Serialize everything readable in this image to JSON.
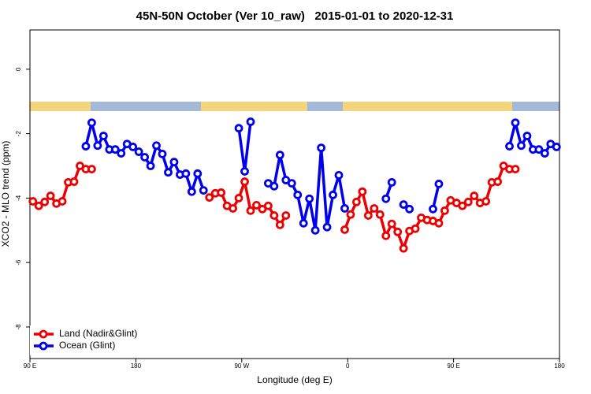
{
  "chart_data": {
    "type": "line",
    "title": "45N-50N October (Ver 10_raw)   2015-01-01 to 2020-12-31",
    "xlabel": "Longitude (deg E)",
    "ylabel": "XCO2 - MLO trend (ppm)",
    "xlim": [
      90,
      540
    ],
    "ylim": [
      -8.98,
      1.22
    ],
    "xticks": [
      {
        "value": 90,
        "label": "90 E"
      },
      180,
      {
        "value": 270,
        "label": "90 W"
      },
      {
        "value": 360,
        "label": "0"
      },
      {
        "value": 450,
        "label": "90 E"
      },
      {
        "value": 540,
        "label": "180"
      }
    ],
    "yticks": [
      -8,
      -6,
      -4,
      -2,
      0
    ],
    "legend": "bottomleft",
    "series": [
      {
        "name": "Land (Nadir&Glint)",
        "color": "#ee0000",
        "x": [
          92.5,
          97.5,
          102.5,
          107.5,
          112.5,
          117.5,
          122.5,
          127.5,
          132.5,
          137.5,
          142.5,
          null,
          242.5,
          247.5,
          252.5,
          257.5,
          262.5,
          267.5,
          272.5,
          277.5,
          282.5,
          287.5,
          292.5,
          297.5,
          302.5,
          307.5,
          null,
          357.5,
          362.5,
          367.5,
          372.5,
          377.5,
          382.5,
          387.5,
          392.5,
          397.5,
          402.5,
          407.5,
          412.5,
          417.5,
          422.5,
          427.5,
          432.5,
          437.5,
          442.5,
          447.5,
          452.5,
          457.5,
          462.5,
          467.5,
          472.5,
          477.5,
          482.5,
          487.5,
          492.5,
          497.5,
          502.5
        ],
        "values": [
          -4.1,
          -4.24,
          -4.12,
          -3.93,
          -4.17,
          -4.1,
          -3.51,
          -3.49,
          -3.0,
          -3.1,
          -3.1,
          null,
          -3.98,
          -3.85,
          -3.83,
          -4.24,
          -4.32,
          -4.0,
          -3.49,
          -4.39,
          -4.22,
          -4.34,
          -4.24,
          -4.54,
          -4.83,
          -4.54,
          null,
          -4.98,
          -4.51,
          -4.12,
          -3.8,
          -4.54,
          -4.32,
          -4.51,
          -5.17,
          -4.8,
          -5.05,
          -5.56,
          -5.02,
          -4.95,
          -4.61,
          -4.68,
          -4.71,
          -4.78,
          -4.39,
          -4.07,
          -4.15,
          -4.24,
          -4.12,
          -3.93,
          -4.15,
          -4.1,
          -3.51,
          -3.49,
          -3.0,
          -3.1,
          -3.1
        ]
      },
      {
        "name": "Ocean (Glint)",
        "color": "#0000ee",
        "x": [
          137.5,
          142.5,
          147.5,
          152.5,
          157.5,
          162.5,
          167.5,
          172.5,
          177.5,
          182.5,
          187.5,
          192.5,
          197.5,
          202.5,
          207.5,
          212.5,
          217.5,
          222.5,
          227.5,
          232.5,
          237.5,
          null,
          267.5,
          272.5,
          277.5,
          null,
          292.5,
          297.5,
          302.5,
          307.5,
          312.5,
          317.5,
          322.5,
          327.5,
          332.5,
          337.5,
          342.5,
          347.5,
          352.5,
          357.5,
          null,
          392.5,
          397.5,
          null,
          407.5,
          412.5,
          null,
          432.5,
          437.5,
          null,
          497.5,
          502.5,
          507.5,
          512.5,
          517.5,
          522.5,
          527.5,
          532.5,
          537.5
        ],
        "values": [
          -2.39,
          -1.66,
          -2.37,
          -2.07,
          -2.49,
          -2.49,
          -2.61,
          -2.32,
          -2.41,
          -2.56,
          -2.73,
          -3.0,
          -2.37,
          -2.63,
          -3.2,
          -2.88,
          -3.27,
          -3.24,
          -3.8,
          -3.24,
          -3.76,
          null,
          -1.83,
          -3.17,
          -1.63,
          null,
          -3.54,
          -3.63,
          -2.66,
          -3.44,
          -3.54,
          -3.9,
          -4.78,
          -4.02,
          -5.0,
          -2.44,
          -4.9,
          -3.9,
          -3.29,
          -4.32,
          null,
          -4.02,
          -3.51,
          null,
          -4.2,
          -4.34,
          null,
          -4.34,
          -3.56,
          null,
          -2.39,
          -1.66,
          -2.37,
          -2.07,
          -2.49,
          -2.49,
          -2.61,
          -2.32,
          -2.41
        ]
      }
    ]
  }
}
